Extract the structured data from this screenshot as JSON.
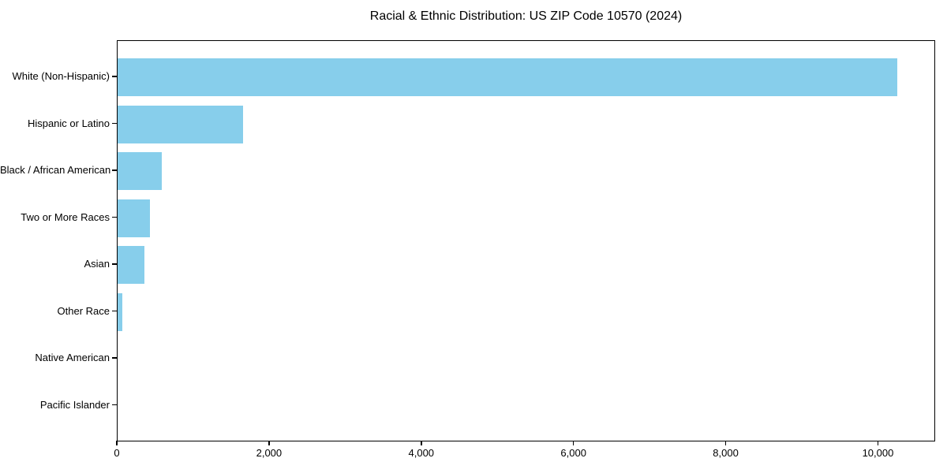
{
  "figure": {
    "background_color": "#ffffff",
    "text_color": "#000000",
    "frame_color": "#000000"
  },
  "chart_data": {
    "type": "bar",
    "orientation": "horizontal",
    "title": "Racial & Ethnic Distribution: US ZIP Code 10570 (2024)",
    "xlabel": "",
    "ylabel": "",
    "categories": [
      "White (Non-Hispanic)",
      "Hispanic or Latino",
      "Black / African American",
      "Two or More Races",
      "Asian",
      "Other Race",
      "Native American",
      "Pacific Islander"
    ],
    "values": [
      10240,
      1650,
      580,
      420,
      350,
      65,
      0,
      0
    ],
    "bar_color": "#87CEEB",
    "xlim": [
      0,
      10752
    ],
    "x_ticks": [
      0,
      2000,
      4000,
      6000,
      8000,
      10000
    ],
    "x_tick_labels": [
      "0",
      "2,000",
      "4,000",
      "6,000",
      "8,000",
      "10,000"
    ],
    "grid": false,
    "legend": null
  }
}
